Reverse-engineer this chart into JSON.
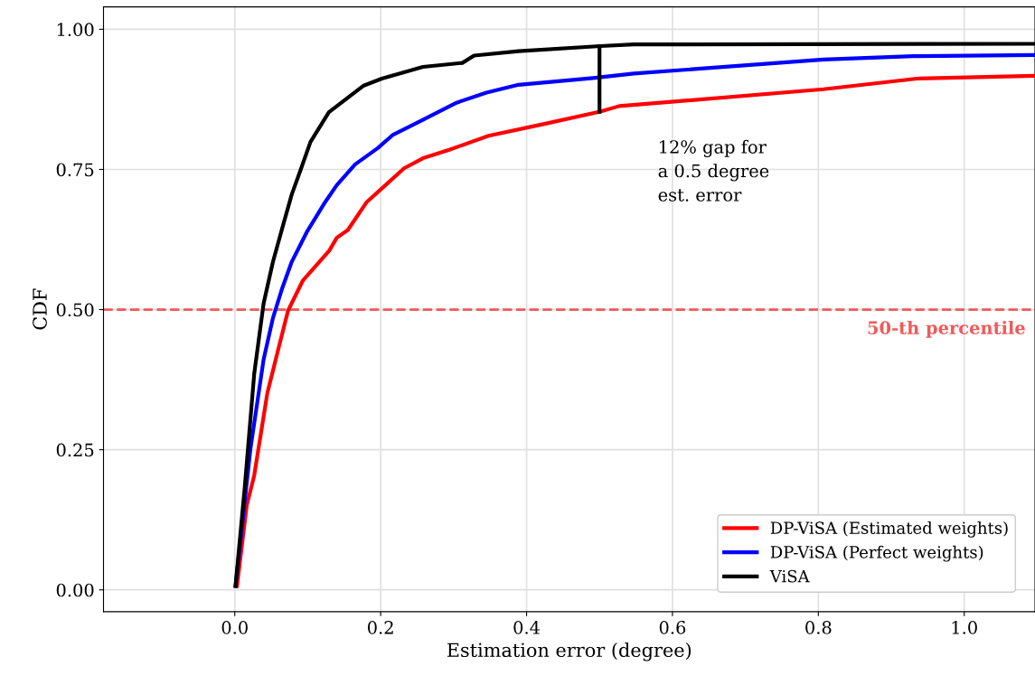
{
  "chart_data": {
    "type": "line",
    "xlabel": "Estimation error (degree)",
    "ylabel": "CDF",
    "xlim": [
      -0.18,
      1.097
    ],
    "ylim": [
      -0.039,
      1.04
    ],
    "xticks": [
      {
        "value": 0,
        "label": "0.0"
      },
      0.2,
      0.4,
      0.6,
      0.8,
      {
        "value": 1,
        "label": "1.0"
      }
    ],
    "yticks": [
      {
        "value": 0,
        "label": "0.00"
      },
      0.25,
      {
        "value": 0.5,
        "label": "0.50"
      },
      0.75,
      {
        "value": 1,
        "label": "1.00"
      }
    ],
    "grid": true,
    "legend": "bottom right",
    "line_style": "solid",
    "marker": "none",
    "series": [
      {
        "name": "DP-ViSA (Estimated weights)",
        "color": "#ff0000",
        "x": [
          0.003,
          0.0164,
          0.0266,
          0.0446,
          0.06,
          0.073,
          0.0934,
          0.1295,
          0.1398,
          0.155,
          0.181,
          0.2066,
          0.232,
          0.258,
          0.294,
          0.348,
          0.42,
          0.501,
          0.527,
          0.807,
          0.935,
          1.097
        ],
        "values": [
          0.007,
          0.151,
          0.204,
          0.351,
          0.431,
          0.498,
          0.552,
          0.605,
          0.628,
          0.642,
          0.692,
          0.722,
          0.752,
          0.77,
          0.785,
          0.81,
          0.83,
          0.853,
          0.863,
          0.893,
          0.912,
          0.917
        ]
      },
      {
        "name": "DP-ViSA (Perfect weights)",
        "color": "#0000ff",
        "x": [
          0.001,
          0.0214,
          0.0395,
          0.0523,
          0.065,
          0.078,
          0.0986,
          0.124,
          0.1398,
          0.165,
          0.196,
          0.217,
          0.248,
          0.304,
          0.345,
          0.389,
          0.491,
          0.547,
          0.807,
          0.93,
          1.097
        ],
        "values": [
          0.007,
          0.251,
          0.411,
          0.485,
          0.538,
          0.585,
          0.638,
          0.692,
          0.722,
          0.759,
          0.788,
          0.812,
          0.832,
          0.869,
          0.887,
          0.901,
          0.913,
          0.921,
          0.946,
          0.952,
          0.954
        ]
      },
      {
        "name": "ViSA",
        "color": "#000000",
        "x": [
          0.001,
          0.0137,
          0.0266,
          0.0395,
          0.0523,
          0.065,
          0.078,
          0.091,
          0.1037,
          0.129,
          0.176,
          0.2015,
          0.258,
          0.312,
          0.328,
          0.389,
          0.501,
          0.547,
          1.097
        ],
        "values": [
          0.007,
          0.184,
          0.385,
          0.511,
          0.585,
          0.645,
          0.705,
          0.752,
          0.799,
          0.852,
          0.899,
          0.912,
          0.933,
          0.94,
          0.953,
          0.961,
          0.97,
          0.973,
          0.974
        ]
      },
      {
        "color": "#000000",
        "x": [
          0.5,
          0.5
        ],
        "values": [
          0.853,
          0.97
        ]
      }
    ],
    "ref_lines": [
      {
        "axis": "y",
        "value": 0.5,
        "label": "50-th percentile",
        "color": "#f05a5a",
        "line_style": "dashed"
      }
    ],
    "annotations": [
      "12% gap for\na 0.5 degree\nest. error"
    ]
  }
}
